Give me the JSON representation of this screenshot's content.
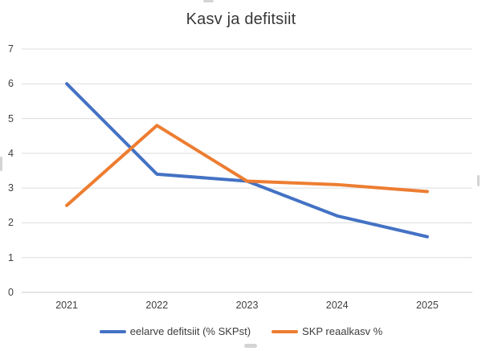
{
  "chart_data": {
    "type": "line",
    "title": "Kasv ja defitsiit",
    "categories": [
      "2021",
      "2022",
      "2023",
      "2024",
      "2025"
    ],
    "series": [
      {
        "name": "eelarve defitsiit (% SKPst)",
        "color": "#4472C4",
        "values": [
          6.0,
          3.4,
          3.2,
          2.2,
          1.6
        ]
      },
      {
        "name": "SKP reaalkasv %",
        "color": "#ED7D31",
        "values": [
          2.5,
          4.8,
          3.2,
          3.1,
          2.9
        ]
      }
    ],
    "xlabel": "",
    "ylabel": "",
    "ylim": [
      0,
      7
    ],
    "yticks": [
      0,
      1,
      2,
      3,
      4,
      5,
      6,
      7
    ],
    "grid": true,
    "legend_position": "bottom"
  },
  "colors": {
    "background": "#FFFFFF",
    "gridline": "#DCDCDC",
    "baseline": "#C9C9C9",
    "axis_text": "#404040",
    "title_text": "#383838",
    "selection_handle": "#D4D4D4"
  }
}
